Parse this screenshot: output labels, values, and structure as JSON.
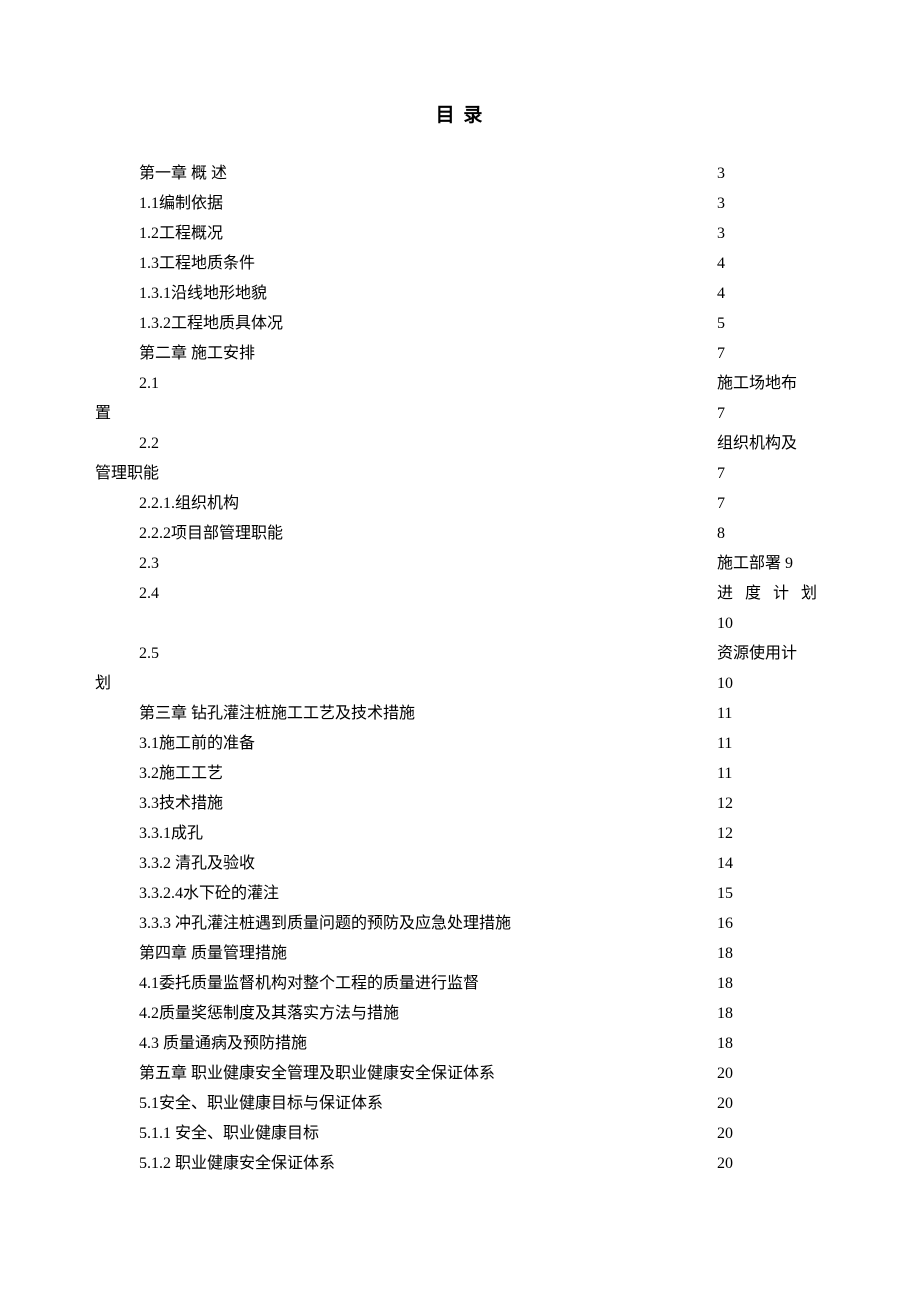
{
  "title": "目 录",
  "entries": [
    {
      "label": "第一章 概 述",
      "page": "3",
      "type": "simple"
    },
    {
      "label": "1.1编制依据",
      "page": "3",
      "type": "simple"
    },
    {
      "label": "1.2工程概况",
      "page": "3",
      "type": "simple"
    },
    {
      "label": "1.3工程地质条件",
      "page": "4",
      "type": "simple"
    },
    {
      "label": "1.3.1沿线地形地貌",
      "page": "4",
      "type": "simple"
    },
    {
      "label": "1.3.2工程地质具体况",
      "page": "5",
      "type": "simple"
    },
    {
      "label": "第二章 施工安排",
      "page": "7",
      "type": "simple"
    },
    {
      "label": "2.1",
      "right": "施工场地布",
      "cont": "置",
      "page": "7",
      "type": "wrap2"
    },
    {
      "label": "2.2",
      "right": "组织机构及",
      "cont": "管理职能",
      "page": "7",
      "type": "wrap2"
    },
    {
      "label": "2.2.1.组织机构",
      "page": "7",
      "type": "simple"
    },
    {
      "label": "2.2.2项目部管理职能",
      "page": "8",
      "type": "simple"
    },
    {
      "label": "2.3",
      "right": "施工部署 9",
      "type": "inline"
    },
    {
      "label": "2.4",
      "right": "进 度 计 划",
      "page": "10",
      "type": "wrap-page-below"
    },
    {
      "label": "2.5",
      "right": "资源使用计",
      "cont": "划",
      "page": "10",
      "type": "wrap2"
    },
    {
      "label": "第三章 钻孔灌注桩施工工艺及技术措施",
      "page": "11",
      "type": "simple"
    },
    {
      "label": "3.1施工前的准备",
      "page": "11",
      "type": "simple"
    },
    {
      "label": "3.2施工工艺",
      "page": "11",
      "type": "simple"
    },
    {
      "label": "3.3技术措施",
      "page": "12",
      "type": "simple"
    },
    {
      "label": "3.3.1成孔",
      "page": "12",
      "type": "simple"
    },
    {
      "label": "3.3.2 清孔及验收",
      "page": "14",
      "type": "simple"
    },
    {
      "label": "3.3.2.4水下砼的灌注",
      "page": "15",
      "type": "simple"
    },
    {
      "label": "3.3.3 冲孔灌注桩遇到质量问题的预防及应急处理措施",
      "page": "16",
      "type": "simple"
    },
    {
      "label": "第四章 质量管理措施",
      "page": "18",
      "type": "simple"
    },
    {
      "label": "4.1委托质量监督机构对整个工程的质量进行监督",
      "page": "18",
      "type": "simple"
    },
    {
      "label": "4.2质量奖惩制度及其落实方法与措施",
      "page": "18",
      "type": "simple"
    },
    {
      "label": "4.3 质量通病及预防措施",
      "page": "18",
      "type": "simple"
    },
    {
      "label": "第五章 职业健康安全管理及职业健康安全保证体系",
      "page": "20",
      "type": "simple"
    },
    {
      "label": "5.1安全、职业健康目标与保证体系",
      "page": "20",
      "type": "simple"
    },
    {
      "label": "5.1.1 安全、职业健康目标",
      "page": "20",
      "type": "simple"
    },
    {
      "label": "5.1.2 职业健康安全保证体系",
      "page": "20",
      "type": "simple"
    }
  ],
  "layout": {
    "page_column_offset": "622px"
  }
}
